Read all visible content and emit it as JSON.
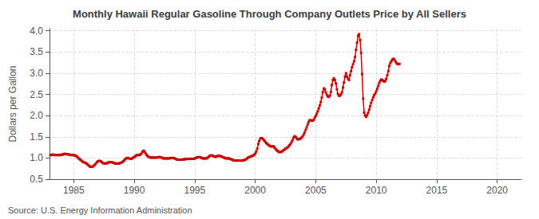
{
  "chart_data": {
    "type": "line",
    "title": "Monthly Hawaii Regular Gasoline Through Company Outlets Price by All Sellers",
    "ylabel": "Dollars per Gallon",
    "annotation": "Source: U.S. Energy Information Administration",
    "color": "#cc0000",
    "marker": "square",
    "grid": true,
    "xlim": [
      1983.0,
      2022.0
    ],
    "ylim": [
      0.5,
      4.05
    ],
    "xticks": [
      1985,
      1990,
      1995,
      2000,
      2005,
      2010,
      2015,
      2020
    ],
    "yticks": [
      0.5,
      {
        "value": 1.0,
        "label": "1.0"
      },
      1.5,
      {
        "value": 2.0,
        "label": "2.0"
      },
      2.5,
      {
        "value": 3.0,
        "label": "3.0"
      },
      3.5,
      {
        "value": 4.0,
        "label": "4.0"
      }
    ],
    "x": [
      1983.08,
      1983.17,
      1983.25,
      1983.33,
      1983.42,
      1983.5,
      1983.58,
      1983.67,
      1983.75,
      1983.83,
      1983.92,
      1984.0,
      1984.08,
      1984.17,
      1984.25,
      1984.33,
      1984.42,
      1984.5,
      1984.58,
      1984.67,
      1984.75,
      1984.83,
      1984.92,
      1985.0,
      1985.08,
      1985.17,
      1985.25,
      1985.33,
      1985.42,
      1985.5,
      1985.58,
      1985.67,
      1985.75,
      1985.83,
      1985.92,
      1986.0,
      1986.08,
      1986.17,
      1986.25,
      1986.33,
      1986.42,
      1986.5,
      1986.58,
      1986.67,
      1986.75,
      1986.83,
      1986.92,
      1987.0,
      1987.08,
      1987.17,
      1987.25,
      1987.33,
      1987.42,
      1987.5,
      1987.58,
      1987.67,
      1987.75,
      1987.83,
      1987.92,
      1988.0,
      1988.08,
      1988.17,
      1988.25,
      1988.33,
      1988.42,
      1988.5,
      1988.58,
      1988.67,
      1988.75,
      1988.83,
      1988.92,
      1989.0,
      1989.08,
      1989.17,
      1989.25,
      1989.33,
      1989.42,
      1989.5,
      1989.58,
      1989.67,
      1989.75,
      1989.83,
      1989.92,
      1990.0,
      1990.08,
      1990.17,
      1990.25,
      1990.33,
      1990.42,
      1990.5,
      1990.58,
      1990.67,
      1990.75,
      1990.83,
      1990.92,
      1991.0,
      1991.08,
      1991.17,
      1991.25,
      1991.33,
      1991.42,
      1991.5,
      1991.58,
      1991.67,
      1991.75,
      1991.83,
      1991.92,
      1992.0,
      1992.08,
      1992.17,
      1992.25,
      1992.33,
      1992.42,
      1992.5,
      1992.58,
      1992.67,
      1992.75,
      1992.83,
      1992.92,
      1993.0,
      1993.08,
      1993.17,
      1993.25,
      1993.33,
      1993.42,
      1993.5,
      1993.58,
      1993.67,
      1993.75,
      1993.83,
      1993.92,
      1994.0,
      1994.08,
      1994.17,
      1994.25,
      1994.33,
      1994.42,
      1994.5,
      1994.58,
      1994.67,
      1994.75,
      1994.83,
      1994.92,
      1995.0,
      1995.08,
      1995.17,
      1995.25,
      1995.33,
      1995.42,
      1995.5,
      1995.58,
      1995.67,
      1995.75,
      1995.83,
      1995.92,
      1996.0,
      1996.08,
      1996.17,
      1996.25,
      1996.33,
      1996.42,
      1996.5,
      1996.58,
      1996.67,
      1996.75,
      1996.83,
      1996.92,
      1997.0,
      1997.08,
      1997.17,
      1997.25,
      1997.33,
      1997.42,
      1997.5,
      1997.58,
      1997.67,
      1997.75,
      1997.83,
      1997.92,
      1998.0,
      1998.08,
      1998.17,
      1998.25,
      1998.33,
      1998.42,
      1998.5,
      1998.58,
      1998.67,
      1998.75,
      1998.83,
      1998.92,
      1999.0,
      1999.08,
      1999.17,
      1999.25,
      1999.33,
      1999.42,
      1999.5,
      1999.58,
      1999.67,
      1999.75,
      1999.83,
      1999.92,
      2000.0,
      2000.08,
      2000.17,
      2000.25,
      2000.33,
      2000.42,
      2000.5,
      2000.58,
      2000.67,
      2000.75,
      2000.83,
      2000.92,
      2001.0,
      2001.08,
      2001.17,
      2001.25,
      2001.33,
      2001.42,
      2001.5,
      2001.58,
      2001.67,
      2001.75,
      2001.83,
      2001.92,
      2002.0,
      2002.08,
      2002.17,
      2002.25,
      2002.33,
      2002.42,
      2002.5,
      2002.58,
      2002.67,
      2002.75,
      2002.83,
      2002.92,
      2003.0,
      2003.08,
      2003.17,
      2003.25,
      2003.33,
      2003.42,
      2003.5,
      2003.58,
      2003.67,
      2003.75,
      2003.83,
      2003.92,
      2004.0,
      2004.08,
      2004.17,
      2004.25,
      2004.33,
      2004.42,
      2004.5,
      2004.58,
      2004.67,
      2004.75,
      2004.83,
      2004.92,
      2005.0,
      2005.08,
      2005.17,
      2005.25,
      2005.33,
      2005.42,
      2005.5,
      2005.58,
      2005.67,
      2005.75,
      2005.83,
      2005.92,
      2006.0,
      2006.08,
      2006.17,
      2006.25,
      2006.33,
      2006.42,
      2006.5,
      2006.58,
      2006.67,
      2006.75,
      2006.83,
      2006.92,
      2007.0,
      2007.08,
      2007.17,
      2007.25,
      2007.33,
      2007.42,
      2007.5,
      2007.58,
      2007.67,
      2007.75,
      2007.83,
      2007.92,
      2008.0,
      2008.08,
      2008.17,
      2008.25,
      2008.33,
      2008.42,
      2008.5,
      2008.58,
      2008.67,
      2008.75,
      2008.83,
      2008.92,
      2009.0,
      2009.08,
      2009.17,
      2009.25,
      2009.33,
      2009.42,
      2009.5,
      2009.58,
      2009.67,
      2009.75,
      2009.83,
      2009.92,
      2010.0,
      2010.08,
      2010.17,
      2010.25,
      2010.33,
      2010.42,
      2010.5,
      2010.58,
      2010.67,
      2010.75,
      2010.83,
      2010.92,
      2011.0,
      2011.08,
      2011.17,
      2011.25,
      2011.33,
      2011.42,
      2011.5,
      2011.58,
      2011.67,
      2011.75,
      2011.83,
      2011.92
    ],
    "values": [
      1.07,
      1.07,
      1.08,
      1.08,
      1.07,
      1.07,
      1.07,
      1.07,
      1.07,
      1.07,
      1.07,
      1.08,
      1.08,
      1.09,
      1.1,
      1.09,
      1.09,
      1.09,
      1.08,
      1.08,
      1.07,
      1.07,
      1.07,
      1.07,
      1.06,
      1.05,
      1.04,
      1.01,
      0.99,
      0.97,
      0.95,
      0.93,
      0.91,
      0.9,
      0.89,
      0.88,
      0.86,
      0.84,
      0.82,
      0.8,
      0.79,
      0.79,
      0.8,
      0.82,
      0.84,
      0.87,
      0.9,
      0.92,
      0.93,
      0.93,
      0.92,
      0.9,
      0.88,
      0.87,
      0.87,
      0.87,
      0.88,
      0.89,
      0.9,
      0.9,
      0.9,
      0.9,
      0.89,
      0.88,
      0.87,
      0.87,
      0.87,
      0.87,
      0.87,
      0.88,
      0.89,
      0.9,
      0.92,
      0.94,
      0.97,
      0.99,
      1.0,
      1.0,
      0.99,
      0.98,
      0.98,
      0.99,
      1.01,
      1.02,
      1.04,
      1.06,
      1.07,
      1.07,
      1.07,
      1.08,
      1.1,
      1.14,
      1.17,
      1.16,
      1.12,
      1.08,
      1.05,
      1.03,
      1.02,
      1.01,
      1.01,
      1.01,
      1.01,
      1.01,
      1.01,
      1.01,
      1.01,
      1.02,
      1.02,
      1.02,
      1.01,
      1.0,
      0.99,
      0.99,
      0.99,
      0.99,
      0.99,
      0.99,
      0.99,
      1.0,
      1.0,
      1.0,
      1.0,
      0.99,
      0.98,
      0.97,
      0.96,
      0.96,
      0.96,
      0.96,
      0.96,
      0.96,
      0.97,
      0.97,
      0.97,
      0.98,
      0.98,
      0.98,
      0.98,
      0.98,
      0.98,
      0.98,
      0.98,
      0.99,
      1.0,
      1.01,
      1.02,
      1.02,
      1.02,
      1.01,
      1.0,
      0.99,
      0.99,
      0.99,
      0.99,
      0.99,
      1.01,
      1.03,
      1.05,
      1.06,
      1.06,
      1.05,
      1.04,
      1.03,
      1.03,
      1.04,
      1.05,
      1.05,
      1.05,
      1.04,
      1.03,
      1.02,
      1.01,
      1.0,
      0.99,
      0.99,
      0.99,
      0.99,
      0.98,
      0.97,
      0.96,
      0.95,
      0.94,
      0.94,
      0.94,
      0.94,
      0.94,
      0.94,
      0.94,
      0.94,
      0.94,
      0.94,
      0.95,
      0.96,
      0.97,
      0.99,
      1.01,
      1.02,
      1.03,
      1.04,
      1.05,
      1.06,
      1.08,
      1.1,
      1.15,
      1.22,
      1.33,
      1.4,
      1.46,
      1.47,
      1.46,
      1.44,
      1.41,
      1.38,
      1.35,
      1.33,
      1.31,
      1.29,
      1.28,
      1.27,
      1.27,
      1.28,
      1.25,
      1.22,
      1.19,
      1.17,
      1.15,
      1.14,
      1.14,
      1.15,
      1.16,
      1.18,
      1.2,
      1.22,
      1.23,
      1.25,
      1.27,
      1.3,
      1.33,
      1.37,
      1.42,
      1.48,
      1.51,
      1.5,
      1.47,
      1.44,
      1.44,
      1.45,
      1.46,
      1.48,
      1.51,
      1.55,
      1.6,
      1.66,
      1.72,
      1.79,
      1.85,
      1.89,
      1.89,
      1.88,
      1.88,
      1.9,
      1.95,
      1.99,
      2.04,
      2.1,
      2.17,
      2.24,
      2.32,
      2.42,
      2.55,
      2.64,
      2.62,
      2.55,
      2.49,
      2.45,
      2.44,
      2.47,
      2.56,
      2.72,
      2.84,
      2.88,
      2.84,
      2.76,
      2.62,
      2.51,
      2.47,
      2.47,
      2.5,
      2.55,
      2.66,
      2.78,
      2.92,
      3.0,
      2.92,
      2.87,
      2.84,
      2.95,
      3.05,
      3.14,
      3.21,
      3.28,
      3.38,
      3.55,
      3.72,
      3.88,
      3.92,
      3.78,
      3.48,
      2.98,
      2.4,
      2.07,
      2.0,
      1.97,
      2.01,
      2.07,
      2.14,
      2.22,
      2.3,
      2.37,
      2.43,
      2.48,
      2.52,
      2.57,
      2.63,
      2.7,
      2.77,
      2.82,
      2.85,
      2.84,
      2.82,
      2.8,
      2.82,
      2.87,
      2.95,
      3.05,
      3.17,
      3.24,
      3.28,
      3.32,
      3.34,
      3.32,
      3.28,
      3.24,
      3.22,
      3.21,
      3.22
    ]
  }
}
